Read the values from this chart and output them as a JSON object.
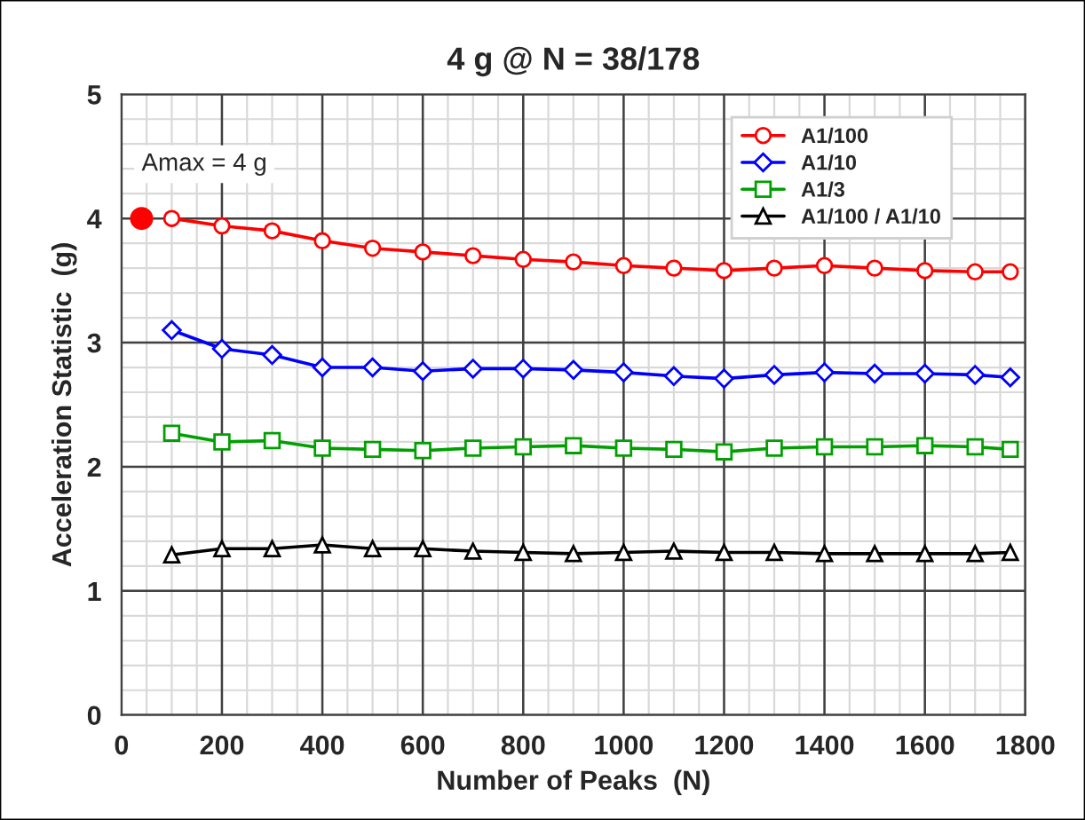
{
  "chart_data": {
    "type": "line",
    "title": "4 g @ N = 38/178",
    "xlabel": "Number of Peaks  (N)",
    "ylabel": "Acceleration Statistic  (g)",
    "x": [
      100,
      200,
      300,
      400,
      500,
      600,
      700,
      800,
      900,
      1000,
      1100,
      1200,
      1300,
      1400,
      1500,
      1600,
      1700,
      1770
    ],
    "series": [
      {
        "name": "A1/100",
        "color": "#ff0000",
        "marker": "circle",
        "values": [
          4.0,
          3.94,
          3.9,
          3.82,
          3.76,
          3.73,
          3.7,
          3.67,
          3.65,
          3.62,
          3.6,
          3.58,
          3.6,
          3.62,
          3.6,
          3.58,
          3.57,
          3.57
        ]
      },
      {
        "name": "A1/10",
        "color": "#0000ff",
        "marker": "diamond",
        "values": [
          3.1,
          2.95,
          2.9,
          2.8,
          2.8,
          2.77,
          2.79,
          2.79,
          2.78,
          2.76,
          2.73,
          2.71,
          2.74,
          2.76,
          2.75,
          2.75,
          2.74,
          2.72
        ]
      },
      {
        "name": "A1/3",
        "color": "#00a000",
        "marker": "square",
        "values": [
          2.27,
          2.2,
          2.21,
          2.15,
          2.14,
          2.13,
          2.15,
          2.16,
          2.17,
          2.15,
          2.14,
          2.12,
          2.15,
          2.16,
          2.16,
          2.17,
          2.16,
          2.14
        ]
      },
      {
        "name": "A1/100 / A1/10",
        "color": "#000000",
        "marker": "triangle",
        "values": [
          1.29,
          1.34,
          1.34,
          1.37,
          1.34,
          1.34,
          1.32,
          1.31,
          1.3,
          1.31,
          1.32,
          1.31,
          1.31,
          1.3,
          1.3,
          1.3,
          1.3,
          1.31
        ]
      },
      {
        "type": "scatter",
        "color": "#ff0000",
        "marker": "circle",
        "x": [
          40
        ],
        "values": [
          4.0
        ]
      }
    ],
    "annotations": [
      {
        "text": "Amax = 4 g",
        "x": 40,
        "y": 4.0
      }
    ],
    "xlim": [
      0,
      1800
    ],
    "xticks": [
      0,
      200,
      400,
      600,
      800,
      1000,
      1200,
      1400,
      1600,
      1800
    ],
    "ylim": [
      0,
      5
    ],
    "yticks": [
      0,
      1,
      2,
      3,
      4,
      5
    ],
    "grid": true,
    "legend": "top right",
    "line_style": "solid"
  }
}
